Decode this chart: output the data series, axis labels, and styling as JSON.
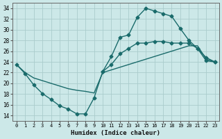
{
  "xlabel": "Humidex (Indice chaleur)",
  "bg_color": "#cce8e8",
  "grid_color": "#aacccc",
  "line_color": "#1a6b6b",
  "xlim": [
    -0.5,
    23.5
  ],
  "ylim": [
    13.0,
    35.0
  ],
  "yticks": [
    14,
    16,
    18,
    20,
    22,
    24,
    26,
    28,
    30,
    32,
    34
  ],
  "xticks": [
    0,
    1,
    2,
    3,
    4,
    5,
    6,
    7,
    8,
    9,
    10,
    11,
    12,
    13,
    14,
    15,
    16,
    17,
    18,
    19,
    20,
    21,
    22,
    23
  ],
  "line1_x": [
    0,
    1,
    2,
    3,
    4,
    5,
    6,
    7,
    8,
    9,
    10,
    11,
    12,
    13,
    14,
    15,
    16,
    17,
    18,
    19,
    20,
    21,
    22,
    23
  ],
  "line1_y": [
    23.5,
    21.8,
    19.7,
    18.1,
    17.0,
    15.8,
    15.2,
    14.3,
    14.3,
    17.3,
    22.2,
    25.0,
    28.6,
    29.0,
    32.3,
    34.0,
    33.5,
    33.0,
    32.5,
    30.2,
    28.0,
    26.5,
    24.2,
    24.0
  ],
  "line2_x": [
    10,
    11,
    12,
    13,
    14,
    15,
    16,
    17,
    18,
    19,
    20,
    21,
    22,
    23
  ],
  "line2_y": [
    22.2,
    23.5,
    25.5,
    26.5,
    27.5,
    27.5,
    27.8,
    27.8,
    27.5,
    27.5,
    27.5,
    26.5,
    24.8,
    24.0
  ],
  "line3_x": [
    0,
    1,
    2,
    3,
    4,
    5,
    6,
    7,
    8,
    9,
    10,
    11,
    12,
    13,
    14,
    15,
    16,
    17,
    18,
    19,
    20,
    21,
    22,
    23
  ],
  "line3_y": [
    23.5,
    22.0,
    21.0,
    20.5,
    20.0,
    19.5,
    19.0,
    18.7,
    18.5,
    18.2,
    22.0,
    22.5,
    23.0,
    23.5,
    24.0,
    24.5,
    25.0,
    25.5,
    26.0,
    26.5,
    27.0,
    27.0,
    24.5,
    24.0
  ],
  "marker_size": 2.5,
  "linewidth": 1.0
}
